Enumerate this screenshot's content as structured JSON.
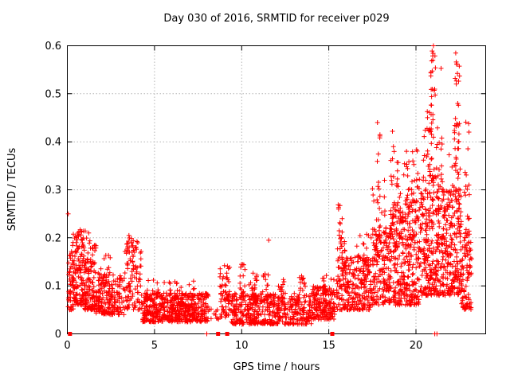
{
  "chart_data": {
    "type": "scatter",
    "title": "Day 030 of 2016, SRMTID for receiver p029",
    "xlabel": "GPS time / hours",
    "ylabel": "SRMTID / TECUs",
    "xlim": [
      0,
      24
    ],
    "ylim": [
      0,
      0.6
    ],
    "x_tick_values": [
      0,
      5,
      10,
      15,
      20
    ],
    "x_tick_labels": [
      "0",
      "5",
      "10",
      "15",
      "20"
    ],
    "y_tick_values": [
      0,
      0.1,
      0.2,
      0.3,
      0.4,
      0.5,
      0.6
    ],
    "y_tick_labels": [
      "0",
      "0.1",
      "0.2",
      "0.3",
      "0.4",
      "0.5",
      "0.6"
    ],
    "x_grid_values": [
      5,
      10,
      15,
      20
    ],
    "y_grid_values": [
      0.1,
      0.2,
      0.3,
      0.4,
      0.5
    ],
    "grid_style": "dotted",
    "grid_color": "#b4b4b4",
    "frame_color": "#000000",
    "marker": "plus",
    "marker_color": "#ff0000",
    "legend": "none",
    "series_name": "SRMTID",
    "clusters_format": "[t_start_hours, t_end_hours, n_points, y_min_TECUs, y_max_TECUs, low_bias_power] - estimated density model of the ~3500 plotted points",
    "clusters": [
      [
        0.05,
        0.35,
        45,
        0.05,
        0.18,
        1.5
      ],
      [
        0.3,
        1.0,
        130,
        0.06,
        0.215,
        1.6
      ],
      [
        1.0,
        1.65,
        110,
        0.05,
        0.185,
        1.7
      ],
      [
        0.4,
        1.5,
        25,
        0.14,
        0.22,
        1.0
      ],
      [
        1.65,
        3.25,
        190,
        0.04,
        0.125,
        1.6
      ],
      [
        1.7,
        2.5,
        18,
        0.1,
        0.165,
        1.0
      ],
      [
        3.25,
        4.3,
        90,
        0.05,
        0.19,
        1.5
      ],
      [
        3.4,
        4.05,
        22,
        0.13,
        0.205,
        1.0
      ],
      [
        4.3,
        8.1,
        520,
        0.025,
        0.085,
        1.4
      ],
      [
        4.5,
        8.05,
        45,
        0.07,
        0.112,
        1.2
      ],
      [
        8.1,
        8.7,
        10,
        0.03,
        0.065,
        1.2
      ],
      [
        8.75,
        9.35,
        70,
        0.035,
        0.145,
        1.3
      ],
      [
        9.4,
        14.0,
        500,
        0.02,
        0.085,
        1.5
      ],
      [
        9.9,
        10.2,
        15,
        0.08,
        0.15,
        1.0
      ],
      [
        10.4,
        10.9,
        18,
        0.08,
        0.13,
        1.0
      ],
      [
        11.2,
        11.55,
        10,
        0.08,
        0.125,
        1.0
      ],
      [
        12.1,
        12.45,
        10,
        0.08,
        0.115,
        1.0
      ],
      [
        13.3,
        13.65,
        14,
        0.08,
        0.128,
        1.0
      ],
      [
        14.0,
        15.35,
        170,
        0.03,
        0.1,
        1.4
      ],
      [
        14.6,
        15.3,
        20,
        0.08,
        0.125,
        1.0
      ],
      [
        15.45,
        16.15,
        85,
        0.05,
        0.16,
        1.3
      ],
      [
        15.5,
        15.8,
        24,
        0.13,
        0.27,
        1.0
      ],
      [
        15.85,
        16.05,
        10,
        0.12,
        0.2,
        1.0
      ],
      [
        16.15,
        17.4,
        150,
        0.05,
        0.16,
        1.4
      ],
      [
        16.5,
        17.3,
        22,
        0.11,
        0.21,
        1.0
      ],
      [
        17.4,
        18.6,
        170,
        0.06,
        0.22,
        1.4
      ],
      [
        17.78,
        17.95,
        20,
        0.16,
        0.445,
        1.0
      ],
      [
        18.55,
        18.75,
        20,
        0.16,
        0.43,
        1.0
      ],
      [
        17.5,
        18.7,
        28,
        0.2,
        0.32,
        1.0
      ],
      [
        18.7,
        20.2,
        280,
        0.06,
        0.28,
        1.5
      ],
      [
        18.8,
        20.2,
        55,
        0.2,
        0.36,
        1.0
      ],
      [
        19.4,
        20.15,
        10,
        0.3,
        0.4,
        1.0
      ],
      [
        20.2,
        21.6,
        270,
        0.08,
        0.33,
        1.4
      ],
      [
        20.4,
        21.55,
        55,
        0.25,
        0.43,
        1.0
      ],
      [
        20.85,
        21.15,
        22,
        0.35,
        0.6,
        1.0
      ],
      [
        20.6,
        20.8,
        6,
        0.42,
        0.47,
        1.0
      ],
      [
        21.6,
        22.6,
        190,
        0.08,
        0.3,
        1.4
      ],
      [
        21.9,
        22.55,
        38,
        0.25,
        0.45,
        1.0
      ],
      [
        22.2,
        22.5,
        14,
        0.42,
        0.585,
        1.0
      ],
      [
        22.6,
        23.2,
        95,
        0.05,
        0.22,
        1.4
      ],
      [
        22.7,
        23.1,
        14,
        0.2,
        0.35,
        1.0
      ],
      [
        22.85,
        23.05,
        4,
        0.38,
        0.47,
        1.0
      ]
    ],
    "extra_points": [
      [
        0.05,
        0.25
      ],
      [
        11.55,
        0.195
      ],
      [
        8.0,
        0.0
      ],
      [
        21.08,
        0.0
      ],
      [
        21.2,
        0.0
      ],
      [
        21.0,
        0.6
      ],
      [
        20.93,
        0.589
      ],
      [
        20.97,
        0.57
      ],
      [
        21.44,
        0.553
      ],
      [
        22.28,
        0.585
      ],
      [
        22.33,
        0.562
      ],
      [
        22.25,
        0.532
      ]
    ],
    "baseline_square_markers_hours": [
      0.15,
      8.65,
      9.17,
      15.2
    ]
  }
}
